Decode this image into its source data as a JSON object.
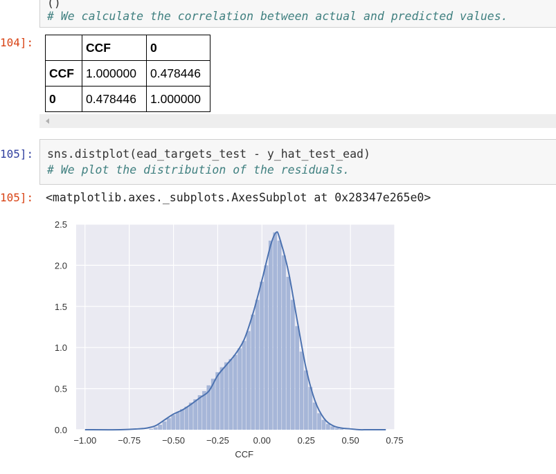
{
  "cells": {
    "top": {
      "partial_first_line": "()",
      "comment": "# We calculate the correlation between actual and predicted values.",
      "out_prompt": "104]:"
    },
    "cell105": {
      "in_prompt": "105]:",
      "code": "sns.distplot(ead_targets_test - y_hat_test_ead)",
      "comment": "# We plot the distribution of the residuals.",
      "out_prompt": "105]:",
      "output_text": "<matplotlib.axes._subplots.AxesSubplot at 0x28347e265e0>"
    }
  },
  "dataframe": {
    "columns": [
      "",
      "CCF",
      "0"
    ],
    "rows": [
      {
        "index": "CCF",
        "values": [
          "1.000000",
          "0.478446"
        ]
      },
      {
        "index": "0",
        "values": [
          "0.478446",
          "1.000000"
        ]
      }
    ]
  },
  "chart_data": {
    "type": "bar",
    "xlabel": "CCF",
    "ylabel": "",
    "title": "",
    "xlim": [
      -1.05,
      0.75
    ],
    "ylim": [
      0,
      2.5
    ],
    "xticks": [
      -1.0,
      -0.75,
      -0.5,
      -0.25,
      0.0,
      0.25,
      0.5,
      0.75
    ],
    "yticks": [
      0.0,
      0.5,
      1.0,
      1.5,
      2.0,
      2.5
    ],
    "grid": true,
    "colors": {
      "bars": "#a6b6d8",
      "kde": "#4c72b0",
      "background": "#eaeaf2"
    },
    "histogram": {
      "bin_width": 0.025,
      "bins": [
        {
          "x": -0.625,
          "y": 0.01
        },
        {
          "x": -0.6,
          "y": 0.03
        },
        {
          "x": -0.575,
          "y": 0.06
        },
        {
          "x": -0.55,
          "y": 0.1
        },
        {
          "x": -0.525,
          "y": 0.14
        },
        {
          "x": -0.5,
          "y": 0.18
        },
        {
          "x": -0.475,
          "y": 0.21
        },
        {
          "x": -0.45,
          "y": 0.25
        },
        {
          "x": -0.425,
          "y": 0.28
        },
        {
          "x": -0.4,
          "y": 0.33
        },
        {
          "x": -0.375,
          "y": 0.37
        },
        {
          "x": -0.35,
          "y": 0.42
        },
        {
          "x": -0.325,
          "y": 0.47
        },
        {
          "x": -0.3,
          "y": 0.54
        },
        {
          "x": -0.275,
          "y": 0.62
        },
        {
          "x": -0.25,
          "y": 0.7
        },
        {
          "x": -0.225,
          "y": 0.76
        },
        {
          "x": -0.2,
          "y": 0.82
        },
        {
          "x": -0.175,
          "y": 0.86
        },
        {
          "x": -0.15,
          "y": 0.91
        },
        {
          "x": -0.125,
          "y": 0.99
        },
        {
          "x": -0.1,
          "y": 1.08
        },
        {
          "x": -0.075,
          "y": 1.2
        },
        {
          "x": -0.05,
          "y": 1.4
        },
        {
          "x": -0.025,
          "y": 1.58
        },
        {
          "x": 0.0,
          "y": 1.8
        },
        {
          "x": 0.025,
          "y": 2.0
        },
        {
          "x": 0.05,
          "y": 2.3
        },
        {
          "x": 0.075,
          "y": 2.4
        },
        {
          "x": 0.1,
          "y": 2.3
        },
        {
          "x": 0.125,
          "y": 2.12
        },
        {
          "x": 0.15,
          "y": 1.86
        },
        {
          "x": 0.175,
          "y": 1.58
        },
        {
          "x": 0.2,
          "y": 1.26
        },
        {
          "x": 0.225,
          "y": 0.95
        },
        {
          "x": 0.25,
          "y": 0.72
        },
        {
          "x": 0.275,
          "y": 0.52
        },
        {
          "x": 0.3,
          "y": 0.33
        },
        {
          "x": 0.325,
          "y": 0.2
        },
        {
          "x": 0.35,
          "y": 0.12
        },
        {
          "x": 0.375,
          "y": 0.07
        },
        {
          "x": 0.4,
          "y": 0.04
        },
        {
          "x": 0.425,
          "y": 0.02
        },
        {
          "x": 0.45,
          "y": 0.01
        }
      ]
    },
    "kde": {
      "x": [
        -1.0,
        -0.8,
        -0.7,
        -0.65,
        -0.6,
        -0.55,
        -0.5,
        -0.45,
        -0.4,
        -0.35,
        -0.3,
        -0.25,
        -0.2,
        -0.15,
        -0.1,
        -0.05,
        0.0,
        0.05,
        0.08,
        0.1,
        0.15,
        0.2,
        0.25,
        0.3,
        0.35,
        0.4,
        0.45,
        0.5,
        0.55,
        0.6,
        0.7
      ],
      "y": [
        0.0,
        0.0,
        0.01,
        0.02,
        0.05,
        0.12,
        0.19,
        0.24,
        0.31,
        0.39,
        0.47,
        0.66,
        0.79,
        0.92,
        1.1,
        1.42,
        1.82,
        2.25,
        2.4,
        2.33,
        1.92,
        1.32,
        0.74,
        0.35,
        0.14,
        0.05,
        0.02,
        0.01,
        0.0,
        0.0,
        0.0
      ]
    }
  }
}
